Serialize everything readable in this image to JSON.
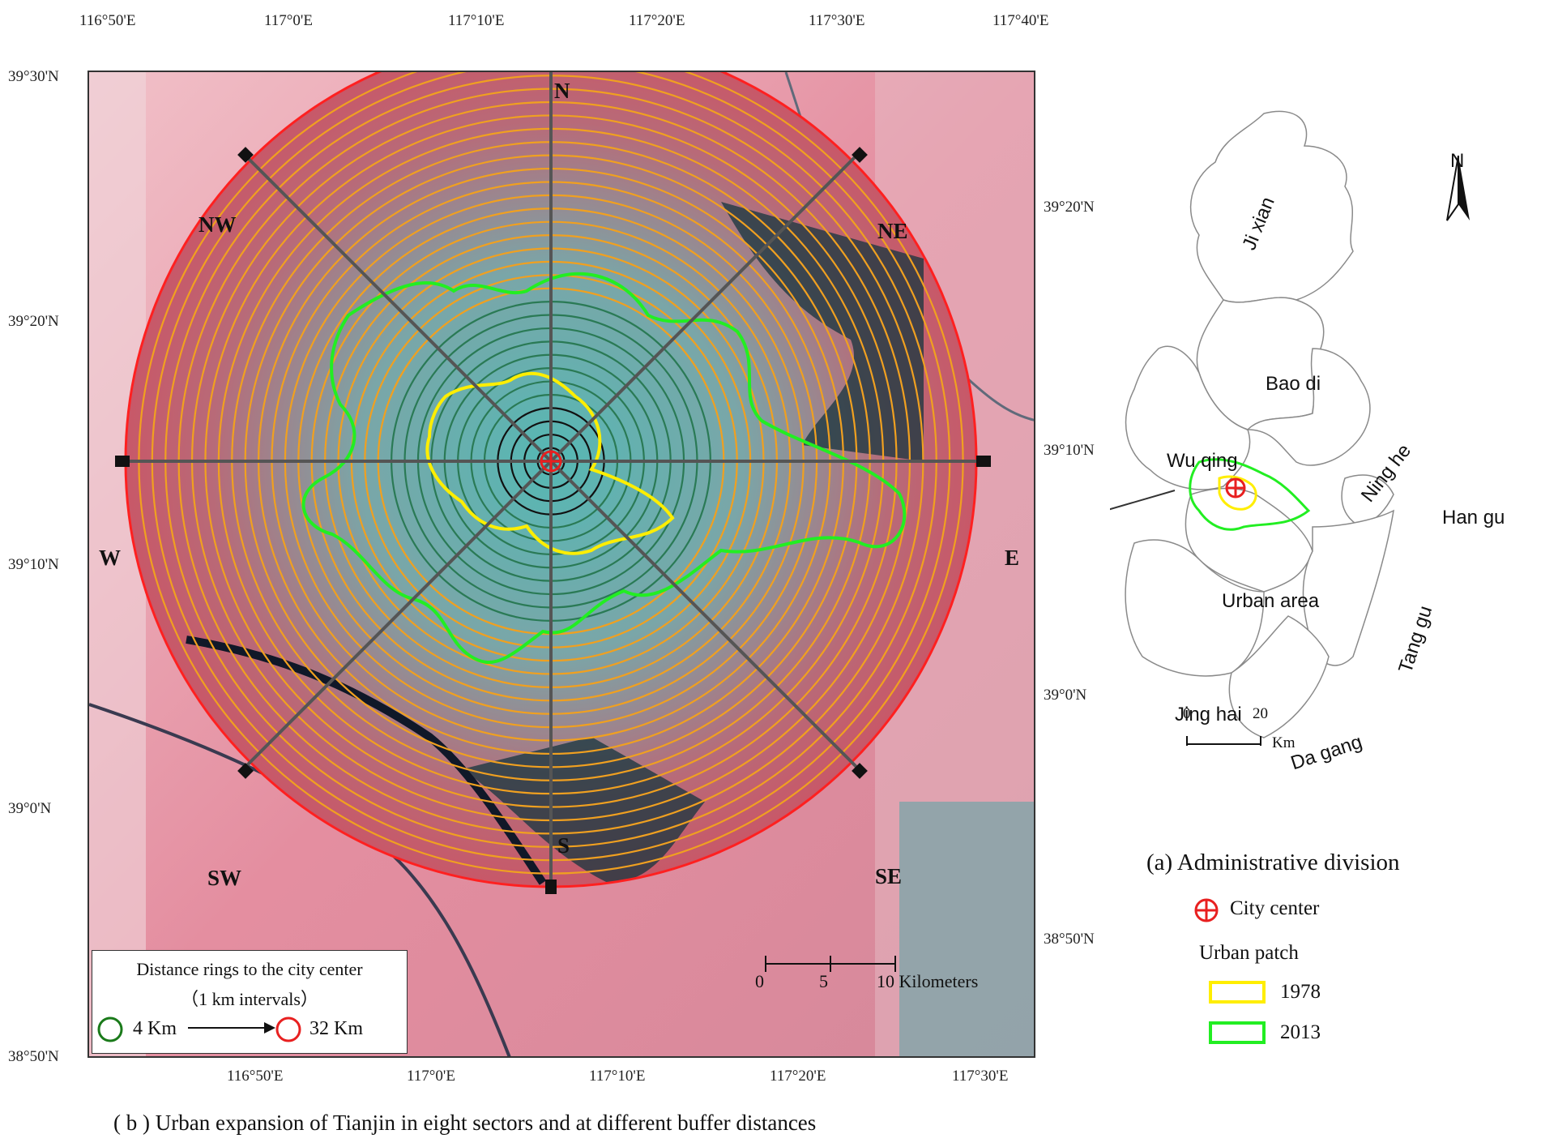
{
  "top_lon_labels": [
    "116°50'E",
    "117°0'E",
    "117°10'E",
    "117°20'E",
    "117°30'E",
    "117°40'E"
  ],
  "bottom_lon_labels": [
    "116°50'E",
    "117°0'E",
    "117°10'E",
    "117°20'E",
    "117°30'E"
  ],
  "left_lat_labels": [
    "39°30'N",
    "39°20'N",
    "39°10'N",
    "39°0'N",
    "38°50'N"
  ],
  "right_lat_labels": [
    "39°20'N",
    "39°10'N",
    "39°0'N",
    "38°50'N"
  ],
  "directions": {
    "n": "N",
    "ne": "NE",
    "e": "E",
    "se": "SE",
    "s": "S",
    "sw": "SW",
    "w": "W",
    "nw": "NW"
  },
  "scale_bar": {
    "zero": "0",
    "five": "5",
    "ten": "10 Kilometers"
  },
  "ring_legend": {
    "title": "Distance rings to the city center",
    "subtitle": "（1 km intervals）",
    "inner_label": "4 Km",
    "outer_label": "32 Km",
    "inner_color": "#1a7a1a",
    "outer_color": "#e82020"
  },
  "caption": "( b )  Urban expansion of Tianjin in eight sectors and at different buffer distances",
  "inset": {
    "north_label": "N",
    "districts": {
      "ji_xian": "Ji xian",
      "bao_di": "Bao di",
      "wu_qing": "Wu qing",
      "ning_he": "Ning he",
      "han_gu": "Han gu",
      "urban_area": "Urban area",
      "tang_gu": "Tang gu",
      "jing_hai": "Jing hai",
      "da_gang": "Da gang"
    },
    "scale": {
      "zero": "0",
      "twenty": "20",
      "unit": "Km"
    },
    "caption": "(a) Administrative division"
  },
  "legend": {
    "city_center": "City center",
    "urban_patch_title": "Urban patch",
    "year_1978": "1978",
    "year_2013": "2013",
    "color_1978": "#ffee00",
    "color_2013": "#22ee22",
    "city_center_color": "#e82020"
  },
  "colors": {
    "ring_orange": "#f0a020",
    "ring_dark": "#2a7a55",
    "circle_outline": "#ff2020",
    "sector_line": "#555555",
    "imagery_pink": "#e07a90",
    "imagery_cyan": "#5fc8c0"
  }
}
